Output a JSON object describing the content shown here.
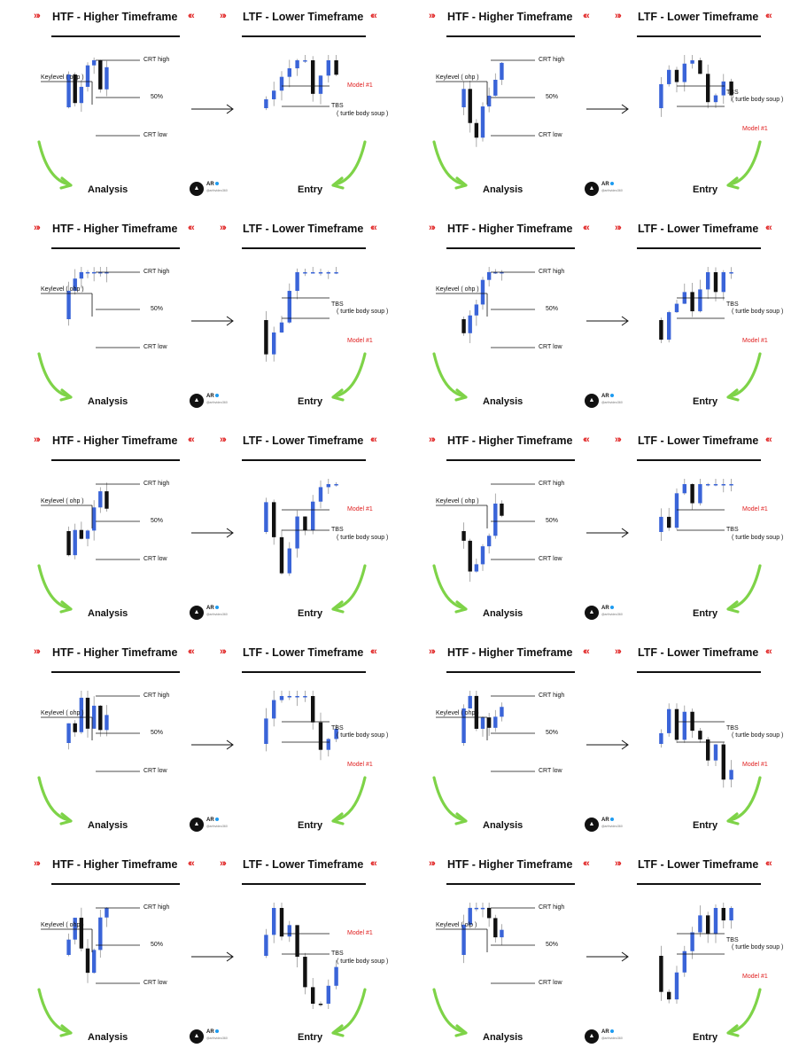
{
  "colors": {
    "accent_red": "#e02020",
    "bull": "#3a64d8",
    "bear": "#111111",
    "arrow_green": "#7ed348",
    "verified": "#1d9bf0"
  },
  "brand": {
    "name": "AR",
    "handle": "@arthvideo360"
  },
  "icons": {
    "header_left": "chevrons-right-icon",
    "header_right": "chevrons-left-icon",
    "logo": "owl-logo-icon",
    "verified": "verified-badge-icon"
  },
  "headers": {
    "htf": "HTF - Higher Timeframe",
    "ltf": "LTF - Lower Timeframe",
    "chev_right": "»›",
    "chev_left": "‹«"
  },
  "footer": {
    "analysis": "Analysis",
    "entry": "Entry"
  },
  "panels": [
    {
      "htf": [
        [
          "b",
          0,
          null,
          null
        ],
        [
          "k",
          3,
          2,
          5
        ],
        [
          "U",
          2,
          3.5,
          3.8
        ],
        [
          "k",
          2.5,
          4,
          3.8
        ],
        [
          "U",
          1,
          6,
          6.5
        ],
        [
          "k",
          3,
          3,
          4
        ],
        [
          "k",
          1,
          2,
          2.5
        ]
      ],
      "ltf": [
        [
          "k",
          2,
          1.8,
          1.5
        ],
        [
          "k",
          1.2,
          1.6,
          1.4
        ],
        [
          "U",
          1,
          3,
          2.8
        ],
        [
          "U",
          1,
          6,
          7
        ],
        [
          "U",
          5,
          8,
          8.3
        ],
        [
          "k",
          6.5,
          5.2,
          4
        ],
        [
          "k",
          5.5,
          5,
          3.6
        ],
        [
          "U",
          4.5,
          5.8,
          4.3
        ],
        [
          "k",
          3.5,
          2.8,
          2.3
        ],
        [
          "k",
          2.5,
          2,
          1
        ]
      ],
      "htf_labels": [
        [
          "Keylevel ( ohp )",
          "kl"
        ],
        [
          "CRT high",
          "h"
        ],
        [
          "50%",
          "m"
        ],
        [
          "CRT low",
          "l"
        ]
      ],
      "ltf_labels": [
        [
          "Model #1",
          "red"
        ],
        [
          "TBS",
          "t"
        ],
        [
          "( turtle body soup )",
          "t2"
        ]
      ]
    },
    {
      "htf": [
        [
          "U",
          1,
          3.5,
          3.8
        ],
        [
          "k",
          3,
          1.5,
          0.8
        ],
        [
          "U",
          1.8,
          2.5,
          2.7
        ],
        [
          "U",
          2.5,
          4.2,
          4.5
        ],
        [
          "U",
          3,
          5,
          5.2
        ],
        [
          "U",
          4.5,
          6.5,
          7
        ],
        [
          "k",
          4,
          3.5,
          3
        ],
        [
          "k",
          3.2,
          -0.5,
          -1
        ]
      ],
      "ltf": [
        [
          "k",
          2,
          1.6,
          1.2
        ],
        [
          "k",
          1.4,
          0.8,
          0.4
        ],
        [
          "U",
          0.8,
          1,
          1.4
        ],
        [
          "U",
          1.4,
          1.8,
          1.6
        ],
        [
          "U",
          1.6,
          7.5,
          7.8
        ],
        [
          "k",
          7,
          4.8,
          4.5
        ],
        [
          "k",
          4.2,
          4,
          3
        ],
        [
          "U",
          4,
          4.6,
          4.8
        ],
        [
          "k",
          4.3,
          3.8,
          3.2
        ],
        [
          "k",
          3.5,
          2,
          1.2
        ]
      ],
      "htf_labels": [
        [
          "Keylevel ( ohp )",
          "kl"
        ],
        [
          "CRT high",
          "h"
        ],
        [
          "50%",
          "m"
        ],
        [
          "CRT low",
          "l"
        ]
      ],
      "ltf_labels": [
        [
          "TBS",
          "t"
        ],
        [
          "( turtle body soup )",
          "t2"
        ],
        [
          "Model #1",
          "red"
        ]
      ]
    }
  ],
  "rows": [
    {
      "left": {
        "htf_labels": [
          "Keylevel ( ohp )",
          "CRT high",
          "50%",
          "CRT low"
        ],
        "ltf_labels": [
          "Model #1",
          "TBS",
          "( turtle body soup )"
        ]
      },
      "right": {
        "htf_labels": [
          "Keylevel ( ohp )",
          "CRT high",
          "50%",
          "CRT low"
        ],
        "ltf_labels": [
          "TBS",
          "( turtle body soup )",
          "Model #1"
        ]
      }
    },
    {
      "left": {
        "htf_labels": [
          "Keylevel ( ohp )",
          "CRT high",
          "50%",
          "CRT low"
        ],
        "ltf_labels": [
          "TBS",
          "( turtle body soup )",
          "Model #1"
        ]
      },
      "right": {
        "htf_labels": [
          "Keylevel ( ohp )",
          "CRT high",
          "50%",
          "CRT low"
        ],
        "ltf_labels": [
          "TBS",
          "( turtle body soup )",
          "Model #1"
        ]
      }
    },
    {
      "left": {
        "htf_labels": [
          "Keylevel ( ohp )",
          "CRT high",
          "50%",
          "CRT low"
        ],
        "ltf_labels": [
          "Model #1",
          "TBS",
          "( turtle body soup )"
        ]
      },
      "right": {
        "htf_labels": [
          "Keylevel ( ohp )",
          "CRT high",
          "50%",
          "CRT low"
        ],
        "ltf_labels": [
          "Model #1",
          "TBS",
          "( turtle body soup )"
        ]
      }
    },
    {
      "left": {
        "htf_labels": [
          "Keylevel ( ohp )",
          "CRT high",
          "50%",
          "CRT low"
        ],
        "ltf_labels": [
          "TBS",
          "( turtle body soup )",
          "Model #1"
        ]
      },
      "right": {
        "htf_labels": [
          "Keylevel ( ohp )",
          "CRT high",
          "50%",
          "CRT low"
        ],
        "ltf_labels": [
          "TBS",
          "( turtle body soup )",
          "Model #1"
        ]
      }
    },
    {
      "left": {
        "htf_labels": [
          "Keylevel ( ohp )",
          "CRT high",
          "50%",
          "CRT low"
        ],
        "ltf_labels": [
          "Model #1",
          "TBS",
          "( turtle body soup )"
        ]
      },
      "right": {
        "htf_labels": [
          "CRT high",
          "50%",
          "Keylevel ( olp )",
          "CRT low"
        ],
        "ltf_labels": [
          "TBS",
          "( turtle body soup )",
          "Model #1"
        ]
      }
    }
  ]
}
